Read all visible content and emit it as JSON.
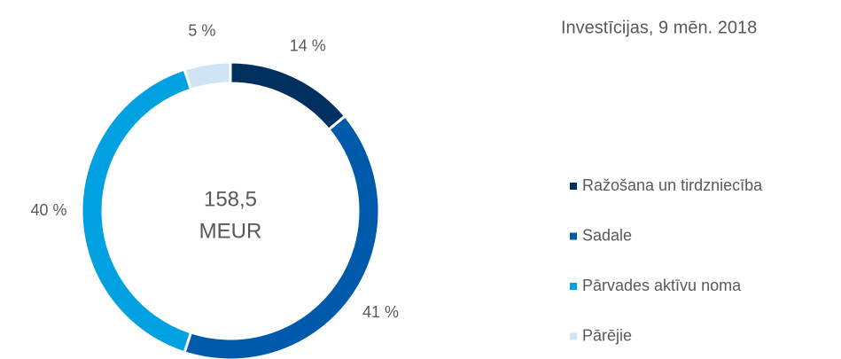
{
  "chart_data": {
    "type": "donut",
    "title": "Investīcijas, 9 mēn. 2018",
    "center_label": [
      "158,5",
      "MEUR"
    ],
    "categories": [
      "Ražošana un tirdzniecība",
      "Sadale",
      "Pārvades aktīvu noma",
      "Pārējie"
    ],
    "values": [
      14,
      41,
      40,
      5
    ],
    "value_labels": [
      "14 %",
      "41 %",
      "40 %",
      "5 %"
    ],
    "colors": [
      "#00305f",
      "#005aab",
      "#00a1e1",
      "#cfe4f5"
    ],
    "legend": "right"
  }
}
